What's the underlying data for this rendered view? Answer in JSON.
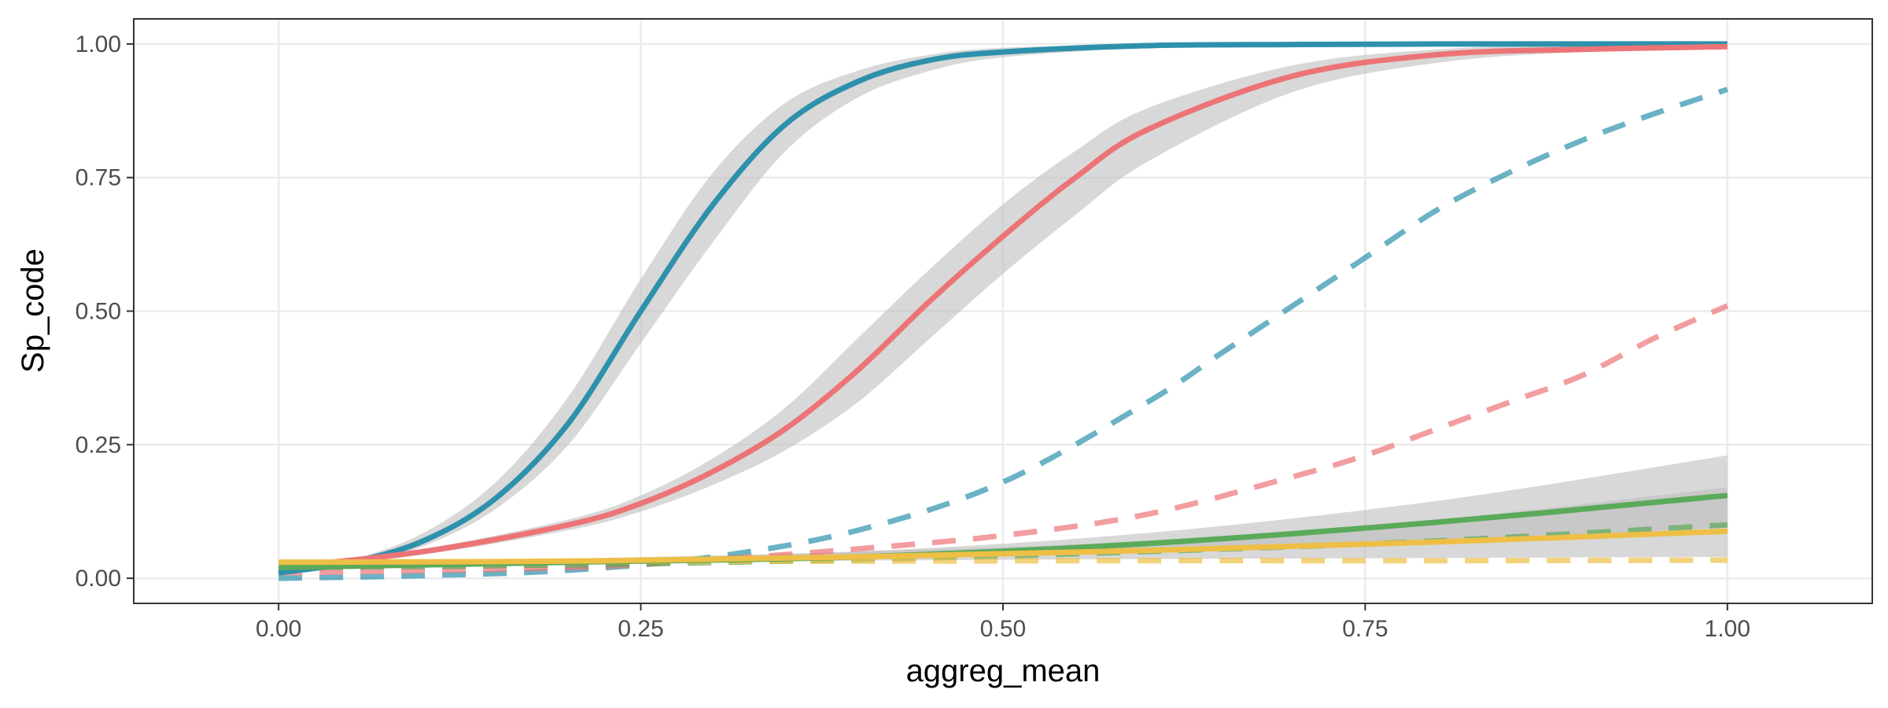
{
  "chart_data": {
    "type": "line",
    "title": "",
    "xlabel": "aggreg_mean",
    "ylabel": "Sp_code",
    "xlim": [
      -0.1,
      1.1
    ],
    "ylim": [
      -0.047,
      1.047
    ],
    "x_ticks": [
      0,
      0.25,
      0.5,
      0.75,
      1
    ],
    "y_ticks": [
      0,
      0.25,
      0.5,
      0.75,
      1
    ],
    "x_tick_labels": [
      "0.00",
      "0.25",
      "0.50",
      "0.75",
      "1.00"
    ],
    "y_tick_labels": [
      "0.00",
      "0.25",
      "0.50",
      "0.75",
      "1.00"
    ],
    "grid": true,
    "legend": "none",
    "colors": {
      "blue": "#2E91AC",
      "red": "#EC7476",
      "green": "#5AAA5A",
      "yellow": "#EEBF45",
      "band": "#BEBEBE"
    },
    "series": [
      {
        "color": "#2E91AC",
        "style": "solid",
        "x": [
          0,
          0.05,
          0.1,
          0.15,
          0.2,
          0.25,
          0.3,
          0.35,
          0.4,
          0.45,
          0.5,
          0.6,
          0.7,
          0.8,
          0.9,
          1
        ],
        "y": [
          0.01,
          0.03,
          0.07,
          0.15,
          0.29,
          0.5,
          0.7,
          0.85,
          0.93,
          0.97,
          0.985,
          0.997,
          0.999,
          1,
          1,
          1
        ],
        "lower": [
          0.01,
          0.025,
          0.06,
          0.13,
          0.25,
          0.44,
          0.63,
          0.8,
          0.9,
          0.95,
          0.975,
          0.993,
          0.998,
          0.999,
          1,
          1
        ],
        "upper": [
          0.012,
          0.035,
          0.085,
          0.18,
          0.34,
          0.56,
          0.76,
          0.89,
          0.95,
          0.98,
          0.993,
          0.999,
          1,
          1,
          1,
          1
        ]
      },
      {
        "color": "#EC7476",
        "style": "solid",
        "x": [
          0,
          0.1,
          0.2,
          0.25,
          0.3,
          0.35,
          0.4,
          0.45,
          0.5,
          0.55,
          0.6,
          0.7,
          0.8,
          0.9,
          1
        ],
        "y": [
          0.02,
          0.05,
          0.1,
          0.14,
          0.2,
          0.28,
          0.39,
          0.52,
          0.64,
          0.75,
          0.84,
          0.94,
          0.98,
          0.99,
          0.995
        ],
        "lower": [
          0.02,
          0.045,
          0.09,
          0.125,
          0.175,
          0.24,
          0.33,
          0.45,
          0.57,
          0.68,
          0.78,
          0.91,
          0.965,
          0.985,
          0.99
        ],
        "upper": [
          0.02,
          0.055,
          0.11,
          0.155,
          0.225,
          0.32,
          0.45,
          0.58,
          0.7,
          0.8,
          0.88,
          0.96,
          0.99,
          0.998,
          1
        ]
      },
      {
        "color": "#2E91AC",
        "style": "dashed",
        "x": [
          0,
          0.1,
          0.2,
          0.3,
          0.4,
          0.5,
          0.6,
          0.65,
          0.7,
          0.75,
          0.8,
          0.85,
          0.9,
          0.95,
          1
        ],
        "y": [
          0,
          0.005,
          0.015,
          0.04,
          0.09,
          0.18,
          0.33,
          0.42,
          0.51,
          0.6,
          0.69,
          0.76,
          0.82,
          0.87,
          0.915
        ]
      },
      {
        "color": "#EC7476",
        "style": "dashed",
        "x": [
          0,
          0.2,
          0.3,
          0.4,
          0.5,
          0.6,
          0.7,
          0.75,
          0.8,
          0.85,
          0.9,
          0.95,
          1
        ],
        "y": [
          0.01,
          0.02,
          0.035,
          0.055,
          0.08,
          0.12,
          0.19,
          0.23,
          0.28,
          0.33,
          0.38,
          0.45,
          0.51
        ]
      },
      {
        "color": "#5AAA5A",
        "style": "solid",
        "x": [
          0,
          0.2,
          0.4,
          0.6,
          0.8,
          1
        ],
        "y": [
          0.02,
          0.03,
          0.04,
          0.065,
          0.105,
          0.155
        ],
        "lower": [
          0.02,
          0.025,
          0.035,
          0.05,
          0.07,
          0.095
        ],
        "upper": [
          0.025,
          0.035,
          0.05,
          0.085,
          0.145,
          0.23
        ]
      },
      {
        "color": "#EEBF45",
        "style": "solid",
        "x": [
          0,
          0.2,
          0.4,
          0.6,
          0.8,
          1
        ],
        "y": [
          0.03,
          0.032,
          0.04,
          0.052,
          0.068,
          0.088
        ],
        "lower": [
          0.028,
          0.03,
          0.033,
          0.036,
          0.038,
          0.04
        ],
        "upper": [
          0.032,
          0.037,
          0.05,
          0.07,
          0.11,
          0.17
        ]
      },
      {
        "color": "#5AAA5A",
        "style": "dashed",
        "x": [
          0,
          0.2,
          0.4,
          0.6,
          0.8,
          1
        ],
        "y": [
          0.02,
          0.025,
          0.035,
          0.05,
          0.07,
          0.1
        ]
      },
      {
        "color": "#EEBF45",
        "style": "dashed",
        "x": [
          0,
          0.2,
          0.4,
          0.6,
          0.8,
          1
        ],
        "y": [
          0.03,
          0.031,
          0.032,
          0.033,
          0.033,
          0.034
        ]
      }
    ]
  }
}
